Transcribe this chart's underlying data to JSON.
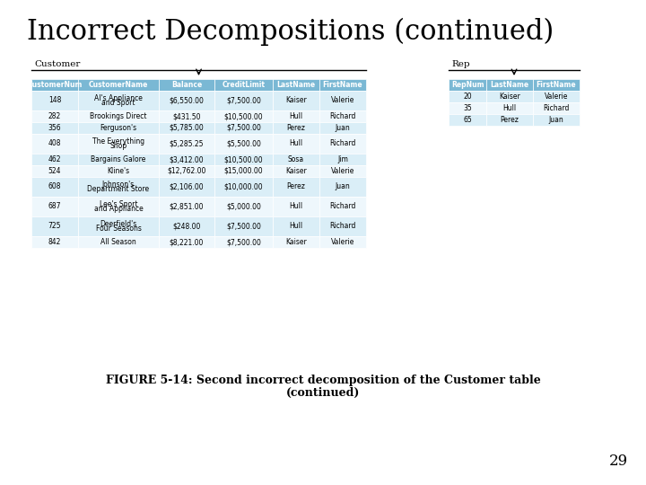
{
  "title": "Incorrect Decompositions (continued)",
  "title_fontsize": 22,
  "bg_color": "#ffffff",
  "header_color": "#7ab8d4",
  "row_color_even": "#daeef7",
  "row_color_odd": "#eef7fc",
  "customer_label": "Customer",
  "rep_label": "Rep",
  "customer_headers": [
    "CustomerNum",
    "CustomerName",
    "Balance",
    "CreditLimit",
    "LastName",
    "FirstName"
  ],
  "rep_headers": [
    "RepNum",
    "LastName",
    "FirstName"
  ],
  "customer_rows": [
    [
      "148",
      "Al's Appliance\nand Sport",
      "$6,550.00",
      "$7,500.00",
      "Kaiser",
      "Valerie"
    ],
    [
      "282",
      "Brookings Direct",
      "$431.50",
      "$10,500.00",
      "Hull",
      "Richard"
    ],
    [
      "356",
      "Ferguson's",
      "$5,785.00",
      "$7,500.00",
      "Perez",
      "Juan"
    ],
    [
      "408",
      "The Everything\nShop",
      "$5,285.25",
      "$5,500.00",
      "Hull",
      "Richard"
    ],
    [
      "462",
      "Bargains Galore",
      "$3,412.00",
      "$10,500.00",
      "Sosa",
      "Jim"
    ],
    [
      "524",
      "Kline's",
      "$12,762.00",
      "$15,000.00",
      "Kaiser",
      "Valerie"
    ],
    [
      "608",
      "Johnson's\nDepartment Store",
      "$2,106.00",
      "$10,000.00",
      "Perez",
      "Juan"
    ],
    [
      "687",
      "Lee's Sport\nand Appliance",
      "$2,851.00",
      "$5,000.00",
      "Hull",
      "Richard"
    ],
    [
      "725",
      "Deerfield's\nFour Seasons",
      "$248.00",
      "$7,500.00",
      "Hull",
      "Richard"
    ],
    [
      "842",
      "All Season",
      "$8,221.00",
      "$7,500.00",
      "Kaiser",
      "Valerie"
    ]
  ],
  "rep_rows": [
    [
      "20",
      "Kaiser",
      "Valerie"
    ],
    [
      "35",
      "Hull",
      "Richard"
    ],
    [
      "65",
      "Perez",
      "Juan"
    ]
  ],
  "caption_line1": "FIGURE 5-14: Second incorrect decomposition of the Customer table",
  "caption_line2": "(continued)",
  "caption_fontsize": 9,
  "page_num": "29",
  "page_num_fontsize": 12
}
